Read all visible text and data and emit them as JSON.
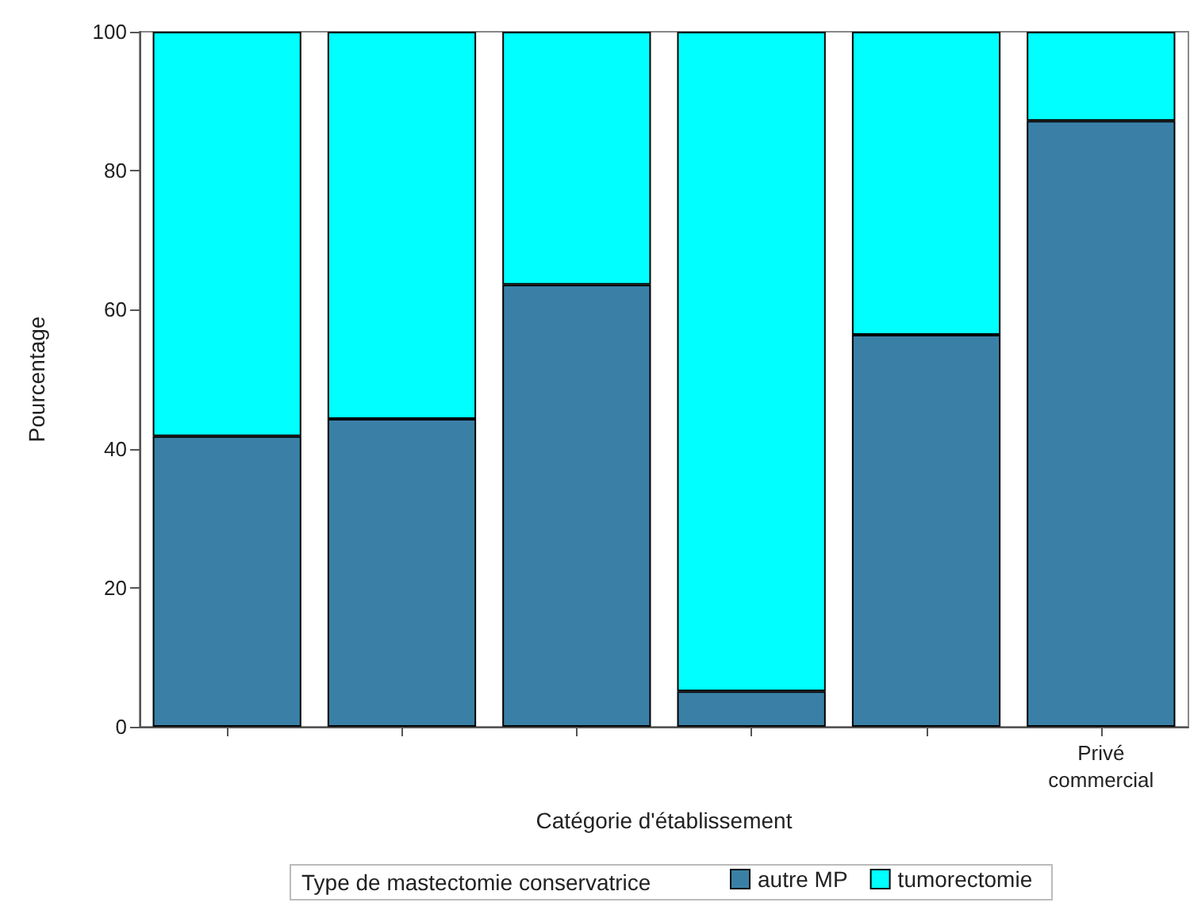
{
  "chart_data": {
    "type": "bar",
    "stacked": true,
    "xlabel": "Catégorie d'établissement",
    "ylabel": "Pourcentage",
    "legend_title": "Type de mastectomie conservatrice",
    "categories": [
      null,
      null,
      null,
      null,
      null,
      "Privé commercial"
    ],
    "series": [
      {
        "name": "autre MP",
        "color": "#3a80a6",
        "values": [
          41.8,
          44.3,
          63.6,
          5.1,
          56.4,
          87.2
        ]
      },
      {
        "name": "tumorectomie",
        "color": "#00ffff",
        "values": [
          58.2,
          55.7,
          36.4,
          94.9,
          43.6,
          12.8
        ]
      }
    ],
    "ylim": [
      0,
      100
    ],
    "yticks": [
      0,
      20,
      40,
      60,
      80,
      100
    ],
    "grid": false,
    "legend": "bottom"
  }
}
